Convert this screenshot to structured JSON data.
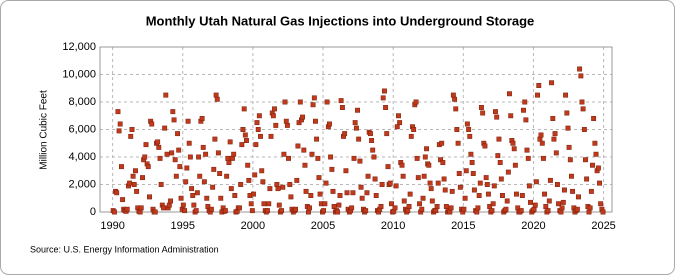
{
  "chart_data": {
    "type": "scatter",
    "title": "Monthly Utah Natural Gas Injections into Underground Storage",
    "ylabel": "Million Cubic Feet",
    "source": "Source: U.S. Energy Information Administration",
    "xlim": [
      1989.1,
      2025.6
    ],
    "xticks": [
      1990,
      1995,
      2000,
      2005,
      2010,
      2015,
      2020,
      2025
    ],
    "ylim": [
      0,
      12000
    ],
    "yticks": [
      0,
      {
        "value": 2000,
        "label": "2,000"
      },
      {
        "value": 4000,
        "label": "4,000"
      },
      {
        "value": 6000,
        "label": "6,000"
      },
      {
        "value": 8000,
        "label": "8,000"
      },
      {
        "value": 10000,
        "label": "10,000"
      },
      {
        "value": 12000,
        "label": "12,000"
      }
    ],
    "grid": true,
    "color": "#c0391b",
    "x": [
      1990.04,
      1990.13,
      1990.21,
      1990.29,
      1990.38,
      1990.46,
      1990.54,
      1990.63,
      1990.71,
      1990.79,
      1990.88,
      1990.96,
      1991.04,
      1991.13,
      1991.21,
      1991.29,
      1991.38,
      1991.46,
      1991.54,
      1991.63,
      1991.71,
      1991.79,
      1991.88,
      1991.96,
      1992.04,
      1992.13,
      1992.21,
      1992.29,
      1992.38,
      1992.46,
      1992.54,
      1992.63,
      1992.71,
      1992.79,
      1992.88,
      1992.96,
      1993.04,
      1993.13,
      1993.21,
      1993.29,
      1993.38,
      1993.46,
      1993.54,
      1993.63,
      1993.71,
      1993.79,
      1993.88,
      1993.96,
      1994.04,
      1994.13,
      1994.21,
      1994.29,
      1994.38,
      1994.46,
      1994.54,
      1994.63,
      1994.71,
      1994.79,
      1994.88,
      1994.96,
      1995.04,
      1995.13,
      1995.21,
      1995.29,
      1995.38,
      1995.46,
      1995.54,
      1995.63,
      1995.71,
      1995.79,
      1995.88,
      1995.96,
      1996.04,
      1996.13,
      1996.21,
      1996.29,
      1996.38,
      1996.46,
      1996.54,
      1996.63,
      1996.71,
      1996.79,
      1996.88,
      1996.96,
      1997.04,
      1997.13,
      1997.21,
      1997.29,
      1997.38,
      1997.46,
      1997.54,
      1997.63,
      1997.71,
      1997.79,
      1997.88,
      1997.96,
      1998.04,
      1998.13,
      1998.21,
      1998.29,
      1998.38,
      1998.46,
      1998.54,
      1998.63,
      1998.71,
      1998.79,
      1998.88,
      1998.96,
      1999.04,
      1999.13,
      1999.21,
      1999.29,
      1999.38,
      1999.46,
      1999.54,
      1999.63,
      1999.71,
      1999.79,
      1999.88,
      1999.96,
      2000.04,
      2000.13,
      2000.21,
      2000.29,
      2000.38,
      2000.46,
      2000.54,
      2000.63,
      2000.71,
      2000.79,
      2000.88,
      2000.96,
      2001.04,
      2001.13,
      2001.21,
      2001.29,
      2001.38,
      2001.46,
      2001.54,
      2001.63,
      2001.71,
      2001.79,
      2001.88,
      2001.96,
      2002.04,
      2002.13,
      2002.21,
      2002.29,
      2002.38,
      2002.46,
      2002.54,
      2002.63,
      2002.71,
      2002.79,
      2002.88,
      2002.96,
      2003.04,
      2003.13,
      2003.21,
      2003.29,
      2003.38,
      2003.46,
      2003.54,
      2003.63,
      2003.71,
      2003.79,
      2003.88,
      2003.96,
      2004.04,
      2004.13,
      2004.21,
      2004.29,
      2004.38,
      2004.46,
      2004.54,
      2004.63,
      2004.71,
      2004.79,
      2004.88,
      2004.96,
      2005.04,
      2005.13,
      2005.21,
      2005.29,
      2005.38,
      2005.46,
      2005.54,
      2005.63,
      2005.71,
      2005.79,
      2005.88,
      2005.96,
      2006.04,
      2006.13,
      2006.21,
      2006.29,
      2006.38,
      2006.46,
      2006.54,
      2006.63,
      2006.71,
      2006.79,
      2006.88,
      2006.96,
      2007.04,
      2007.13,
      2007.21,
      2007.29,
      2007.38,
      2007.46,
      2007.54,
      2007.63,
      2007.71,
      2007.79,
      2007.88,
      2007.96,
      2008.04,
      2008.13,
      2008.21,
      2008.29,
      2008.38,
      2008.46,
      2008.54,
      2008.63,
      2008.71,
      2008.79,
      2008.88,
      2008.96,
      2009.04,
      2009.13,
      2009.21,
      2009.29,
      2009.38,
      2009.46,
      2009.54,
      2009.63,
      2009.71,
      2009.79,
      2009.88,
      2009.96,
      2010.04,
      2010.13,
      2010.21,
      2010.29,
      2010.38,
      2010.46,
      2010.54,
      2010.63,
      2010.71,
      2010.79,
      2010.88,
      2010.96,
      2011.04,
      2011.13,
      2011.21,
      2011.29,
      2011.38,
      2011.46,
      2011.54,
      2011.63,
      2011.71,
      2011.79,
      2011.88,
      2011.96,
      2012.04,
      2012.13,
      2012.21,
      2012.29,
      2012.38,
      2012.46,
      2012.54,
      2012.63,
      2012.71,
      2012.79,
      2012.88,
      2012.96,
      2013.04,
      2013.13,
      2013.21,
      2013.29,
      2013.38,
      2013.46,
      2013.54,
      2013.63,
      2013.71,
      2013.79,
      2013.88,
      2013.96,
      2014.04,
      2014.13,
      2014.21,
      2014.29,
      2014.38,
      2014.46,
      2014.54,
      2014.63,
      2014.71,
      2014.79,
      2014.88,
      2014.96,
      2015.04,
      2015.13,
      2015.21,
      2015.29,
      2015.38,
      2015.46,
      2015.54,
      2015.63,
      2015.71,
      2015.79,
      2015.88,
      2015.96,
      2016.04,
      2016.13,
      2016.21,
      2016.29,
      2016.38,
      2016.46,
      2016.54,
      2016.63,
      2016.71,
      2016.79,
      2016.88,
      2016.96,
      2017.04,
      2017.13,
      2017.21,
      2017.29,
      2017.38,
      2017.46,
      2017.54,
      2017.63,
      2017.71,
      2017.79,
      2017.88,
      2017.96,
      2018.04,
      2018.13,
      2018.21,
      2018.29,
      2018.38,
      2018.46,
      2018.54,
      2018.63,
      2018.71,
      2018.79,
      2018.88,
      2018.96,
      2019.04,
      2019.13,
      2019.21,
      2019.29,
      2019.38,
      2019.46,
      2019.54,
      2019.63,
      2019.71,
      2019.79,
      2019.88,
      2019.96,
      2020.04,
      2020.13,
      2020.21,
      2020.29,
      2020.38,
      2020.46,
      2020.54,
      2020.63,
      2020.71,
      2020.79,
      2020.88,
      2020.96,
      2021.04,
      2021.13,
      2021.21,
      2021.29,
      2021.38,
      2021.46,
      2021.54,
      2021.63,
      2021.71,
      2021.79,
      2021.88,
      2021.96,
      2022.04,
      2022.13,
      2022.21,
      2022.29,
      2022.38,
      2022.46,
      2022.54,
      2022.63,
      2022.71,
      2022.79,
      2022.88,
      2022.96,
      2023.04,
      2023.13,
      2023.21,
      2023.29,
      2023.38,
      2023.46,
      2023.54,
      2023.63,
      2023.71,
      2023.79,
      2023.88,
      2023.96,
      2024.04,
      2024.13,
      2024.21,
      2024.29,
      2024.38,
      2024.46,
      2024.54,
      2024.63,
      2024.71,
      2024.79,
      2024.88,
      2024.96
    ],
    "values": [
      100,
      0,
      1500,
      1400,
      7300,
      5900,
      6400,
      3300,
      900,
      200,
      100,
      50,
      200,
      1900,
      2100,
      5500,
      6000,
      2600,
      2000,
      3000,
      1500,
      300,
      50,
      0,
      300,
      2500,
      3800,
      4000,
      4900,
      3500,
      3300,
      1100,
      6600,
      6400,
      200,
      0,
      0,
      5000,
      5100,
      4700,
      3900,
      2000,
      500,
      300,
      6100,
      8500,
      4200,
      300,
      500,
      800,
      4300,
      7300,
      6700,
      3800,
      2600,
      5700,
      4500,
      3300,
      1000,
      200,
      500,
      100,
      2200,
      3200,
      6600,
      5000,
      4000,
      1700,
      1200,
      500,
      0,
      100,
      1400,
      4000,
      2600,
      6600,
      6800,
      4700,
      2200,
      4200,
      1000,
      400,
      100,
      0,
      200,
      1800,
      3100,
      5300,
      8500,
      8200,
      4300,
      2800,
      1000,
      0,
      300,
      50,
      100,
      2600,
      3900,
      3600,
      5100,
      1700,
      3900,
      4200,
      1200,
      0,
      50,
      300,
      300,
      2000,
      4900,
      6000,
      7500,
      5600,
      5200,
      3400,
      2300,
      1200,
      600,
      100,
      1300,
      2700,
      4900,
      6500,
      6000,
      7000,
      5500,
      3000,
      2200,
      600,
      100,
      0,
      100,
      600,
      1700,
      5500,
      7200,
      7000,
      7500,
      6300,
      2000,
      1700,
      500,
      0,
      100,
      1800,
      4200,
      8000,
      6600,
      6300,
      3900,
      2000,
      1100,
      200,
      0,
      100,
      200,
      2300,
      4800,
      6500,
      8000,
      6700,
      6900,
      4500,
      3400,
      1500,
      400,
      0,
      300,
      1200,
      4200,
      7800,
      8300,
      6600,
      5300,
      3900,
      2500,
      1300,
      600,
      0,
      100,
      600,
      2100,
      8000,
      6200,
      6400,
      4000,
      3100,
      1500,
      400,
      0,
      100,
      0,
      500,
      1200,
      8100,
      7600,
      5500,
      5700,
      3000,
      1400,
      200,
      0,
      100,
      300,
      1400,
      3900,
      6500,
      6100,
      7400,
      5300,
      3700,
      1800,
      1000,
      200,
      0,
      100,
      1400,
      2600,
      5800,
      5700,
      5200,
      4500,
      4000,
      2400,
      1200,
      100,
      0,
      200,
      400,
      2000,
      8300,
      8800,
      7600,
      5700,
      3300,
      2000,
      2100,
      600,
      0,
      50,
      300,
      1900,
      6200,
      7000,
      6500,
      3600,
      3400,
      2600,
      800,
      200,
      0,
      100,
      400,
      1300,
      5500,
      6200,
      6000,
      7800,
      8000,
      3900,
      2500,
      600,
      0,
      200,
      1000,
      2600,
      4000,
      4600,
      3500,
      3400,
      2100,
      1700,
      800,
      0,
      100,
      100,
      400,
      2100,
      4900,
      3800,
      5000,
      3600,
      2400,
      1600,
      400,
      0,
      100,
      0,
      300,
      1500,
      8500,
      8200,
      7500,
      6000,
      5000,
      2800,
      1800,
      200,
      0,
      200,
      1000,
      3000,
      6400,
      6000,
      5500,
      4200,
      3600,
      2800,
      1600,
      100,
      0,
      300,
      1200,
      2100,
      7600,
      7200,
      5000,
      4800,
      2500,
      2000,
      1300,
      400,
      0,
      100,
      600,
      1900,
      7300,
      6900,
      4100,
      5300,
      3600,
      2400,
      1200,
      0,
      100,
      200,
      800,
      2900,
      8600,
      7000,
      5200,
      5000,
      4600,
      3400,
      1300,
      300,
      0,
      0,
      100,
      1200,
      7400,
      8000,
      6700,
      4500,
      3900,
      1900,
      700,
      0,
      100,
      200,
      500,
      2200,
      8500,
      9200,
      5300,
      5600,
      5000,
      3900,
      1300,
      400,
      0,
      100,
      800,
      2300,
      9400,
      6800,
      5300,
      5700,
      4300,
      2000,
      600,
      100,
      0,
      300,
      700,
      1600,
      8500,
      7200,
      6100,
      4700,
      3800,
      2600,
      1500,
      300,
      0,
      100,
      200,
      1100,
      10400,
      9900,
      8000,
      7500,
      6000,
      3800,
      2400,
      400,
      0,
      300,
      1500,
      3400,
      6800,
      5000,
      4200,
      3000,
      3200,
      2100,
      600,
      200,
      0
    ]
  }
}
